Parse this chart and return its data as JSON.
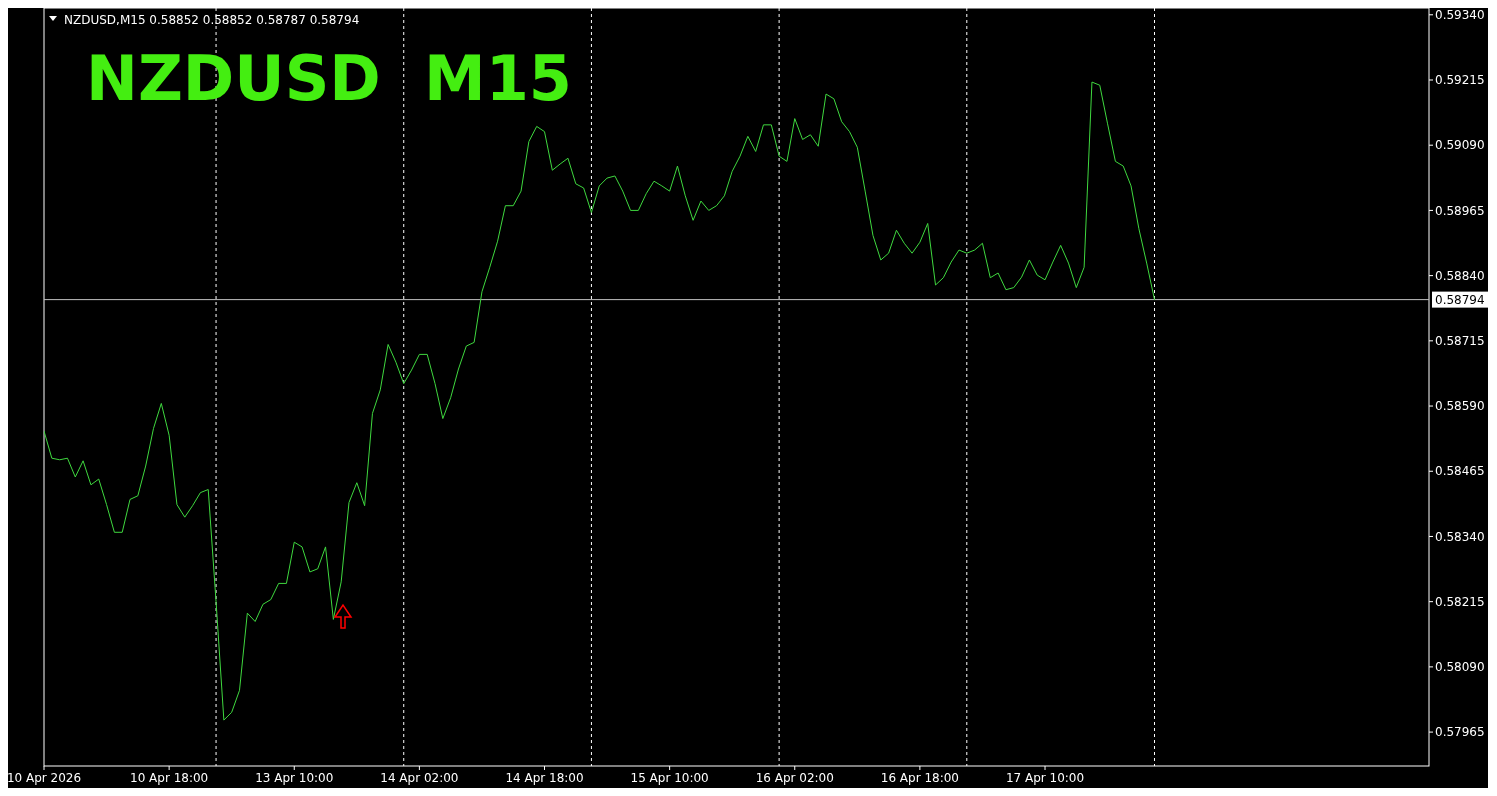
{
  "chart_data": {
    "type": "line",
    "title": "NZDUSD  M15",
    "annotations": [
      "NZDUSD,M15  0.58852 0.58852 0.58787 0.58794"
    ],
    "categories": [
      "10 Apr 2026",
      null,
      null,
      null,
      null,
      null,
      null,
      null,
      null,
      null,
      null,
      null,
      null,
      null,
      null,
      null,
      "10 Apr 18:00",
      null,
      null,
      null,
      null,
      null,
      null,
      null,
      null,
      null,
      null,
      null,
      null,
      null,
      null,
      null,
      "13 Apr 10:00",
      null,
      null,
      null,
      null,
      null,
      null,
      null,
      null,
      null,
      null,
      null,
      null,
      null,
      null,
      null,
      "14 Apr 02:00",
      null,
      null,
      null,
      null,
      null,
      null,
      null,
      null,
      null,
      null,
      null,
      null,
      null,
      null,
      null,
      "14 Apr 18:00",
      null,
      null,
      null,
      null,
      null,
      null,
      null,
      null,
      null,
      null,
      null,
      null,
      null,
      null,
      null,
      "15 Apr 10:00",
      null,
      null,
      null,
      null,
      null,
      null,
      null,
      null,
      null,
      null,
      null,
      null,
      null,
      null,
      null,
      "16 Apr 02:00",
      null,
      null,
      null,
      null,
      null,
      null,
      null,
      null,
      null,
      null,
      null,
      null,
      null,
      null,
      null,
      "16 Apr 18:00",
      null,
      null,
      null,
      null,
      null,
      null,
      null,
      null,
      null,
      null,
      null,
      null,
      null,
      null,
      null,
      "17 Apr 10:00",
      null,
      null,
      null,
      null,
      null,
      null,
      null,
      null,
      null,
      null,
      null,
      null,
      null,
      null,
      null,
      null,
      null,
      null,
      null,
      null,
      null,
      null,
      null,
      null,
      null,
      null,
      null,
      null,
      null,
      null,
      null,
      null,
      null,
      null,
      null,
      null,
      null,
      null,
      null,
      null,
      null,
      null,
      null,
      null,
      null,
      null,
      null,
      null,
      null
    ],
    "ylim": [
      0.579,
      0.59353
    ],
    "yticks": [
      {
        "value": 0.5934,
        "label": "0.59340"
      },
      {
        "value": 0.59215,
        "label": "0.59215"
      },
      {
        "value": 0.5909,
        "label": "0.59090"
      },
      {
        "value": 0.58965,
        "label": "0.58965"
      },
      {
        "value": 0.5884,
        "label": "0.58840"
      },
      {
        "value": 0.58715,
        "label": "0.58715"
      },
      {
        "value": 0.5859,
        "label": "0.58590"
      },
      {
        "value": 0.58465,
        "label": "0.58465"
      },
      {
        "value": 0.5834,
        "label": "0.58340"
      },
      {
        "value": 0.58215,
        "label": "0.58215"
      },
      {
        "value": 0.5809,
        "label": "0.58090"
      },
      {
        "value": 0.57965,
        "label": "0.57965"
      }
    ],
    "ref_lines": [
      {
        "axis": "y",
        "value": 0.58794,
        "label": "0.58794",
        "color": "#c0c0c0"
      }
    ],
    "series": [
      {
        "color": "#3fd83f",
        "values": [
          0.58542,
          0.5849,
          0.58487,
          0.5849,
          0.58454,
          0.58485,
          0.58439,
          0.5845,
          0.58401,
          0.58348,
          0.58348,
          0.58411,
          0.58418,
          0.58475,
          0.58547,
          0.58595,
          0.58534,
          0.58401,
          0.58377,
          0.58399,
          0.58424,
          0.5843,
          0.58215,
          0.57988,
          0.58003,
          0.58045,
          0.58193,
          0.58177,
          0.5821,
          0.58219,
          0.5825,
          0.5825,
          0.58329,
          0.5832,
          0.58272,
          0.58278,
          0.5832,
          0.58181,
          0.58253,
          0.58405,
          0.58443,
          0.58399,
          0.58576,
          0.58621,
          0.58708,
          0.58674,
          0.58633,
          0.58659,
          0.58689,
          0.58689,
          0.58633,
          0.58566,
          0.58606,
          0.58661,
          0.58705,
          0.58712,
          0.58809,
          0.58856,
          0.58906,
          0.58974,
          0.58974,
          0.59002,
          0.59097,
          0.59126,
          0.59116,
          0.59042,
          0.59054,
          0.59065,
          0.59016,
          0.59008,
          0.58961,
          0.59012,
          0.59027,
          0.59031,
          0.59002,
          0.58965,
          0.58965,
          0.58997,
          0.59021,
          0.59012,
          0.59002,
          0.5905,
          0.58993,
          0.58946,
          0.58983,
          0.58965,
          0.58974,
          0.58993,
          0.5904,
          0.59069,
          0.59107,
          0.59078,
          0.59129,
          0.59129,
          0.59069,
          0.59059,
          0.59141,
          0.59101,
          0.5911,
          0.59088,
          0.59188,
          0.59179,
          0.59135,
          0.59116,
          0.59086,
          0.59002,
          0.58917,
          0.5887,
          0.58883,
          0.58927,
          0.58902,
          0.58883,
          0.58904,
          0.5894,
          0.58822,
          0.58836,
          0.58866,
          0.58889,
          0.58883,
          0.58889,
          0.58902,
          0.58836,
          0.58845,
          0.58813,
          0.58817,
          0.58837,
          0.5887,
          0.58841,
          0.58832,
          0.58866,
          0.58898,
          0.58864,
          0.58817,
          0.58856,
          0.59211,
          0.59205,
          0.59131,
          0.59059,
          0.5905,
          0.59012,
          0.5893,
          0.58864,
          0.58794,
          null,
          null,
          null,
          null,
          null,
          null,
          null,
          null,
          null,
          null,
          null,
          null,
          null,
          null,
          null,
          null,
          null,
          null,
          null,
          null,
          null,
          null,
          null,
          null,
          null,
          null,
          null,
          null,
          null,
          null,
          null,
          null,
          null,
          null,
          null
        ]
      }
    ]
  }
}
